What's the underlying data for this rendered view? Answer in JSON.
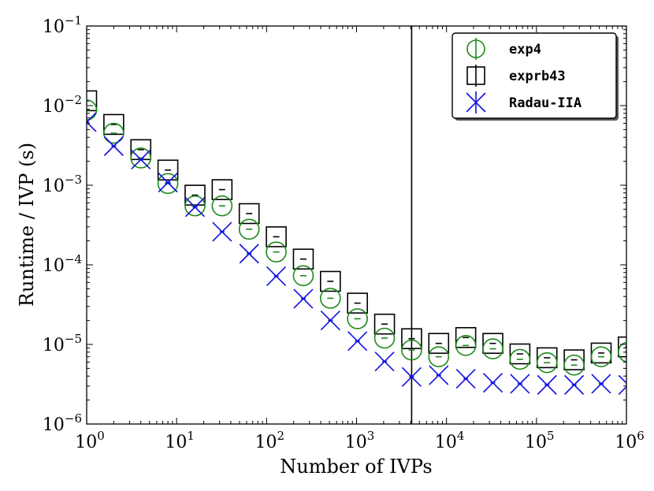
{
  "chart_data": {
    "type": "scatter",
    "xscale": "log",
    "yscale": "log",
    "xlabel": "Number of IVPs",
    "ylabel": "Runtime / IVP (s)",
    "xlim": [
      1,
      1000000
    ],
    "ylim": [
      1e-06,
      0.1
    ],
    "x_ticks": [
      {
        "base": "10",
        "exp": "0",
        "value": 1
      },
      {
        "base": "10",
        "exp": "1",
        "value": 10
      },
      {
        "base": "10",
        "exp": "2",
        "value": 100
      },
      {
        "base": "10",
        "exp": "3",
        "value": 1000
      },
      {
        "base": "10",
        "exp": "4",
        "value": 10000
      },
      {
        "base": "10",
        "exp": "5",
        "value": 100000
      },
      {
        "base": "10",
        "exp": "6",
        "value": 1000000
      }
    ],
    "y_ticks": [
      {
        "base": "10",
        "exp": "−6",
        "value": 1e-06
      },
      {
        "base": "10",
        "exp": "−5",
        "value": 1e-05
      },
      {
        "base": "10",
        "exp": "−4",
        "value": 0.0001
      },
      {
        "base": "10",
        "exp": "−3",
        "value": 0.001
      },
      {
        "base": "10",
        "exp": "−2",
        "value": 0.01
      },
      {
        "base": "10",
        "exp": "−1",
        "value": 0.1
      }
    ],
    "vline_x": 4096,
    "legend_position": "top-right",
    "x": [
      1,
      2,
      4,
      8,
      16,
      32,
      64,
      128,
      256,
      512,
      1024,
      2048,
      4096,
      8192,
      16384,
      32768,
      65536,
      131072,
      262144,
      524288,
      1048576
    ],
    "series": [
      {
        "name": "exp4",
        "marker": "circle",
        "color": "#1a8a1a",
        "values": [
          0.0088,
          0.0045,
          0.0022,
          0.00105,
          0.00055,
          0.00055,
          0.00028,
          0.000145,
          7.3e-05,
          3.8e-05,
          2.1e-05,
          1.2e-05,
          8.5e-06,
          7e-06,
          9.7e-06,
          8.8e-06,
          6.5e-06,
          5.9e-06,
          5.5e-06,
          7e-06,
          8e-06
        ]
      },
      {
        "name": "exprb43",
        "marker": "square",
        "color": "#000000",
        "values": [
          0.0115,
          0.0058,
          0.0028,
          0.00155,
          0.00075,
          0.00088,
          0.00044,
          0.000225,
          0.000118,
          6.2e-05,
          3.3e-05,
          1.8e-05,
          1.18e-05,
          1.03e-05,
          1.22e-05,
          1.03e-05,
          7.6e-06,
          6.8e-06,
          6.4e-06,
          7.8e-06,
          9.3e-06
        ]
      },
      {
        "name": "Radau-IIA",
        "marker": "x",
        "color": "#1010e0",
        "values": [
          0.0062,
          0.0031,
          0.0021,
          0.00108,
          0.00053,
          0.00026,
          0.000138,
          7.2e-05,
          3.75e-05,
          2e-05,
          1.1e-05,
          6.1e-06,
          3.9e-06,
          4.1e-06,
          3.7e-06,
          3.3e-06,
          3.2e-06,
          3.1e-06,
          3.1e-06,
          3.2e-06,
          3.1e-06
        ]
      }
    ]
  }
}
